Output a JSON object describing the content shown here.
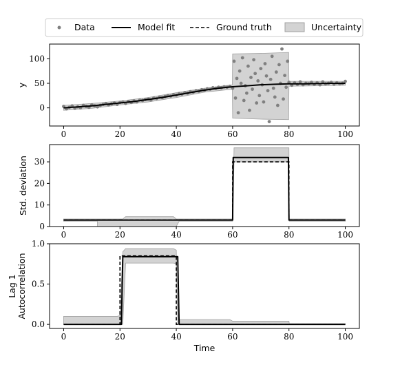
{
  "legend": {
    "items": [
      {
        "label": "Data",
        "kind": "marker",
        "color": "#808080"
      },
      {
        "label": "Model fit",
        "kind": "solid",
        "color": "#000000"
      },
      {
        "label": "Ground truth",
        "kind": "dashed",
        "color": "#000000"
      },
      {
        "label": "Uncertainty",
        "kind": "patch",
        "color": "#d3d3d3"
      }
    ]
  },
  "xlabel": "Time",
  "colors": {
    "data": "#808080",
    "fit": "#000000",
    "truth": "#000000",
    "band": "#d3d3d3",
    "band_edge": "#a0a0a0"
  },
  "chart_data": [
    {
      "type": "scatter",
      "ylabel": "y",
      "xlim": [
        -5,
        105
      ],
      "ylim": [
        -37,
        130
      ],
      "xticks": [
        0,
        20,
        40,
        60,
        80,
        100
      ],
      "yticks": [
        0,
        50,
        100
      ],
      "model_fit": {
        "x": [
          0,
          5,
          10,
          15,
          20,
          25,
          30,
          35,
          40,
          45,
          50,
          55,
          60,
          65,
          70,
          75,
          80,
          85,
          90,
          95,
          100
        ],
        "y": [
          0,
          2,
          4,
          7,
          10,
          13,
          17,
          21,
          26,
          31,
          36,
          40,
          43,
          45,
          47,
          48,
          49,
          49,
          49.5,
          50,
          50
        ]
      },
      "uncertainty": {
        "x": [
          0,
          10,
          20,
          30,
          40,
          50,
          59.9,
          60,
          70,
          79.9,
          80,
          90,
          100
        ],
        "lower": [
          -5,
          -1,
          6,
          12,
          21,
          32,
          38,
          -21,
          -23,
          -24,
          44,
          45,
          46
        ],
        "upper": [
          5,
          9,
          14,
          21,
          31,
          40,
          47,
          110,
          111,
          113,
          54,
          54,
          54
        ]
      },
      "data": {
        "x": [
          0,
          1,
          2,
          3,
          4,
          5,
          6,
          7,
          8,
          9,
          10,
          11,
          12,
          13,
          14,
          15,
          16,
          17,
          18,
          19,
          20,
          21,
          22,
          23,
          24,
          25,
          26,
          27,
          28,
          29,
          30,
          31,
          32,
          33,
          34,
          35,
          36,
          37,
          38,
          39,
          40,
          41,
          42,
          43,
          44,
          45,
          46,
          47,
          48,
          49,
          50,
          51,
          52,
          53,
          54,
          55,
          56,
          57,
          58,
          59,
          60,
          60.5,
          61,
          61.5,
          62,
          62.5,
          63,
          63.5,
          64,
          64.5,
          65,
          65.5,
          66,
          66.5,
          67,
          67.5,
          68,
          68.5,
          69,
          69.5,
          70,
          70.5,
          71,
          71.5,
          72,
          72.5,
          73,
          73.5,
          74,
          74.5,
          75,
          75.5,
          76,
          76.5,
          77,
          77.5,
          78,
          78.5,
          79,
          79.5,
          80,
          81,
          82,
          83,
          84,
          85,
          86,
          87,
          88,
          89,
          90,
          91,
          92,
          93,
          94,
          95,
          96,
          97,
          98,
          99,
          100
        ],
        "y": [
          3,
          -2,
          1,
          4,
          -1,
          2,
          0,
          5,
          3,
          1,
          6,
          4,
          2,
          5,
          7,
          9,
          6,
          8,
          10,
          7,
          11,
          12,
          9,
          13,
          11,
          14,
          12,
          16,
          15,
          17,
          18,
          16,
          20,
          19,
          22,
          21,
          23,
          25,
          24,
          27,
          26,
          29,
          28,
          31,
          30,
          33,
          32,
          35,
          34,
          37,
          36,
          39,
          38,
          41,
          40,
          42,
          41,
          43,
          42,
          44,
          40,
          95,
          20,
          60,
          -10,
          75,
          50,
          102,
          15,
          45,
          30,
          85,
          -5,
          62,
          38,
          98,
          70,
          10,
          55,
          25,
          80,
          47,
          12,
          90,
          65,
          35,
          -28,
          58,
          105,
          40,
          22,
          73,
          5,
          88,
          50,
          120,
          18,
          66,
          42,
          95,
          52,
          46,
          51,
          48,
          53,
          47,
          50,
          49,
          52,
          48,
          51,
          47,
          53,
          49,
          50,
          52,
          48,
          51,
          49,
          50,
          54
        ]
      }
    },
    {
      "type": "line",
      "ylabel": "Std. deviation",
      "xlim": [
        -5,
        105
      ],
      "ylim": [
        0,
        38
      ],
      "xticks": [
        0,
        20,
        40,
        60,
        80,
        100
      ],
      "yticks": [
        0,
        10,
        20,
        30
      ],
      "model_fit": {
        "x": [
          0,
          60,
          60.2,
          79.8,
          80,
          100
        ],
        "y": [
          3,
          3,
          32,
          32,
          3,
          3
        ]
      },
      "ground_truth": {
        "x": [
          0,
          60,
          60,
          80,
          80,
          100
        ],
        "y": [
          3,
          3,
          30,
          30,
          3,
          3
        ]
      },
      "uncertainty": {
        "x": [
          0,
          12,
          12,
          21,
          22,
          38,
          39,
          40,
          41,
          59.9,
          60,
          60.5,
          79.5,
          80,
          80.1,
          100
        ],
        "lower": [
          2.5,
          2.5,
          0,
          0,
          0,
          0,
          0,
          0,
          2.5,
          2.5,
          2.5,
          30,
          30,
          30,
          2.5,
          2.5
        ],
        "upper": [
          3.5,
          3.5,
          3.5,
          3.5,
          4.6,
          4.6,
          4.6,
          3.5,
          3.5,
          3.5,
          3.5,
          36.5,
          36.5,
          36.5,
          3.5,
          3.5
        ]
      }
    },
    {
      "type": "line",
      "ylabel": "Lag 1 Autocorrelation",
      "ylabel_lines": [
        "Lag 1",
        "Autocorrelation"
      ],
      "xlim": [
        -5,
        105
      ],
      "ylim": [
        -0.05,
        1.0
      ],
      "xticks": [
        0,
        20,
        40,
        60,
        80,
        100
      ],
      "yticks": [
        0.0,
        0.5,
        1.0
      ],
      "ytick_labels": [
        "0.0",
        "0.5",
        "1.0"
      ],
      "model_fit": {
        "x": [
          0,
          20.5,
          21,
          21.5,
          40,
          40.5,
          41,
          100
        ],
        "y": [
          0,
          0,
          0.84,
          0.84,
          0.84,
          0.84,
          0,
          0
        ]
      },
      "ground_truth": {
        "x": [
          0,
          20,
          20,
          40,
          40,
          100
        ],
        "y": [
          0,
          0,
          0.85,
          0.85,
          0,
          0
        ]
      },
      "uncertainty": {
        "x": [
          0,
          19,
          20,
          21,
          22,
          39,
          40,
          40.5,
          41,
          59,
          60,
          79,
          80,
          80.1,
          100
        ],
        "lower": [
          0,
          0,
          0,
          0,
          0.76,
          0.76,
          0.75,
          0,
          0,
          0,
          0,
          0,
          0,
          0,
          0
        ],
        "upper": [
          0.1,
          0.1,
          0.11,
          0.9,
          0.94,
          0.94,
          0.92,
          0.07,
          0.06,
          0.06,
          0.04,
          0.04,
          0.04,
          0.01,
          0.01
        ]
      }
    }
  ]
}
